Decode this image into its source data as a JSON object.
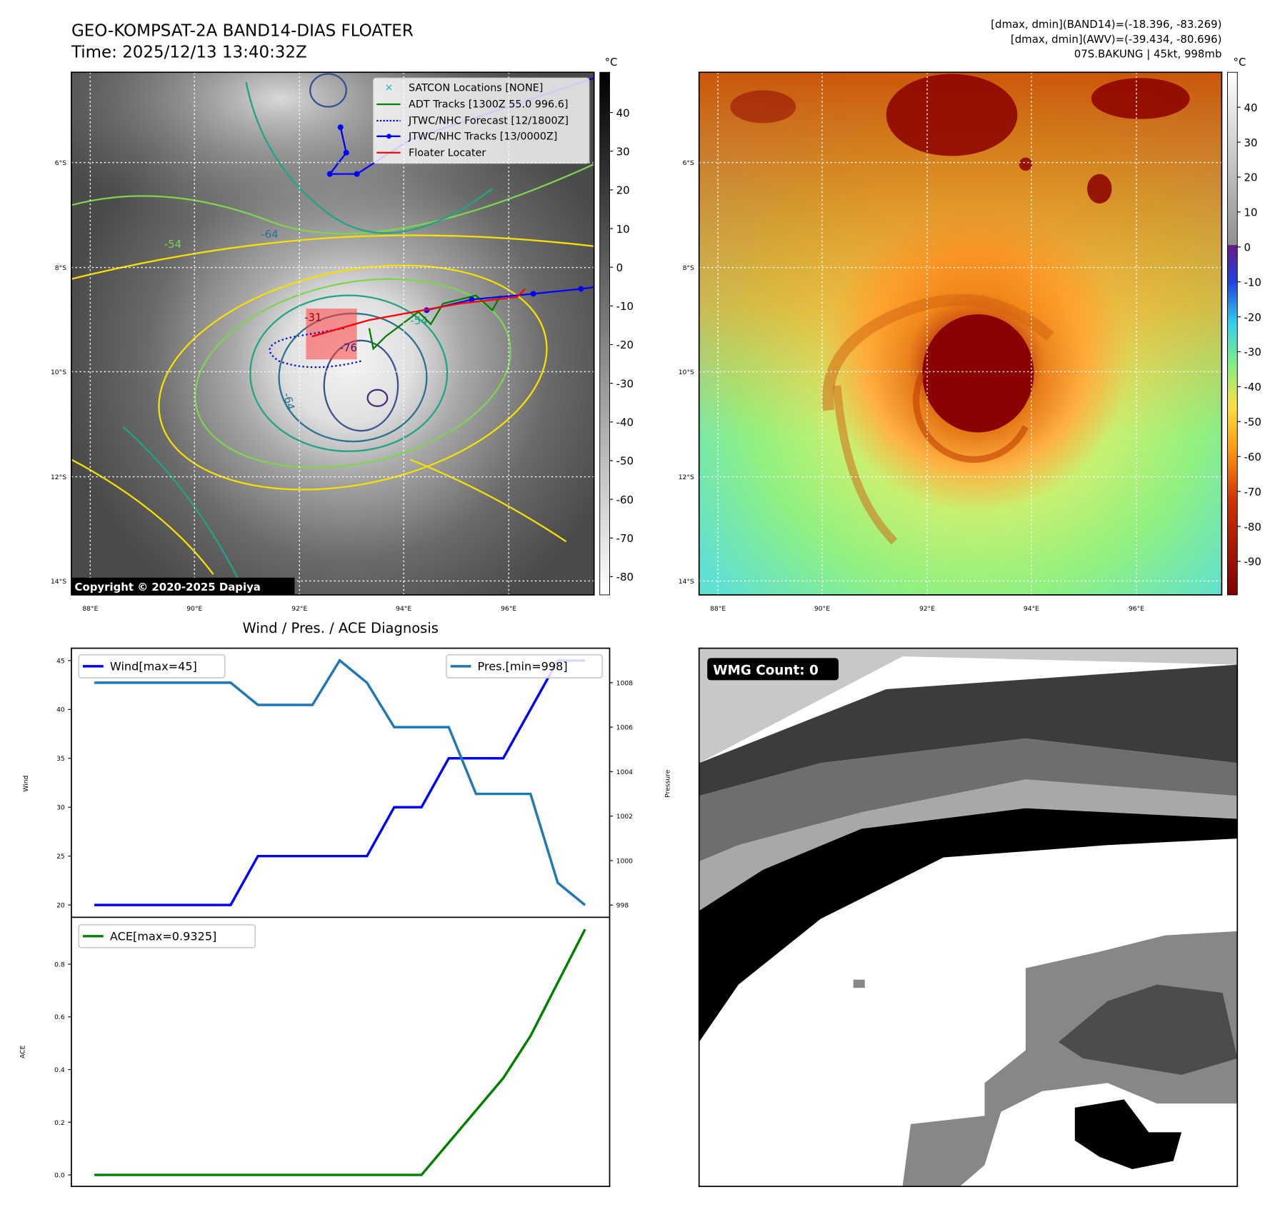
{
  "header": {
    "title": "GEO-KOMPSAT-2A BAND14-DIAS FLOATER",
    "time": "Time: 2025/12/13 13:40:32Z",
    "info_band14": "[dmax, dmin](BAND14)=(-18.396, -83.269)",
    "info_awv": "[dmax, dmin](AWV)=(-39.434, -80.696)",
    "storm": "07S.BAKUNG | 45kt, 998mb"
  },
  "maps": {
    "lat_labels": [
      "6°S",
      "8°S",
      "10°S",
      "12°S",
      "14°S"
    ],
    "lon_labels": [
      "88°E",
      "90°E",
      "92°E",
      "94°E",
      "96°E"
    ],
    "unit": "°C",
    "left_colorbar_ticks": [
      "40",
      "30",
      "20",
      "10",
      "0",
      "-10",
      "-20",
      "-30",
      "-40",
      "-50",
      "-60",
      "-70",
      "-80"
    ],
    "right_colorbar_ticks": [
      "40",
      "30",
      "20",
      "10",
      "0",
      "-10",
      "-20",
      "-30",
      "-40",
      "-50",
      "-60",
      "-70",
      "-80",
      "-90"
    ],
    "copyright": "Copyright © 2020-2025 Dapiya",
    "contour_labels": [
      "-54",
      "-64",
      "-64",
      "-31",
      "-76",
      "-54"
    ],
    "legend": [
      {
        "label": "SATCON Locations [NONE]",
        "color": "#17becf"
      },
      {
        "label": "ADT Tracks [1300Z 55.0 996.6]",
        "color": "#008000"
      },
      {
        "label": "JTWC/NHC Forecast [12/1800Z]",
        "color": "#0000ff"
      },
      {
        "label": "JTWC/NHC Tracks [13/0000Z]",
        "color": "#0000ff"
      },
      {
        "label": "Floater Locater",
        "color": "#ff0000"
      }
    ]
  },
  "wmg": {
    "label": "WMG Count: 0"
  },
  "chart_data": [
    {
      "type": "line",
      "title": "Wind / Pres. / ACE Diagnosis",
      "ylabel": "Wind",
      "ylabel_right": "Pressure",
      "x": [
        0,
        1,
        2,
        3,
        4,
        5,
        6,
        7,
        8,
        9,
        10,
        11,
        12,
        13,
        14,
        15,
        16,
        17,
        18
      ],
      "ylim": [
        18.74,
        46.26
      ],
      "ylim_right": [
        997.45,
        1009.55
      ],
      "yticks": [
        20,
        25,
        30,
        35,
        40,
        45
      ],
      "yticks_right": [
        998,
        1000,
        1002,
        1004,
        1006,
        1008
      ],
      "series": [
        {
          "name": "Wind[max=45]",
          "axis": "left",
          "color": "#0000ff",
          "values": [
            20,
            20,
            20,
            20,
            20,
            20,
            25,
            25,
            25,
            25,
            25,
            30,
            30,
            35,
            35,
            35,
            40,
            45,
            45
          ]
        },
        {
          "name": "Pres.[min=998]",
          "axis": "right",
          "color": "#1f77b4",
          "values": [
            1008,
            1008,
            1008,
            1008,
            1008,
            1008,
            1007,
            1007,
            1007,
            1009,
            1008,
            1006,
            1006,
            1006,
            1003,
            1003,
            1003,
            999,
            998
          ]
        }
      ]
    },
    {
      "type": "line",
      "ylabel": "ACE",
      "ylim": [
        -0.0436,
        0.978
      ],
      "yticks": [
        "0.0",
        "0.2",
        "0.4",
        "0.6",
        "0.8"
      ],
      "series": [
        {
          "name": "ACE[max=0.9325]",
          "color": "#008000",
          "values": [
            0,
            0,
            0,
            0,
            0,
            0,
            0,
            0,
            0,
            0,
            0,
            0,
            0,
            0.1225,
            0.245,
            0.3675,
            0.5275,
            0.73,
            0.9325
          ]
        }
      ]
    }
  ]
}
